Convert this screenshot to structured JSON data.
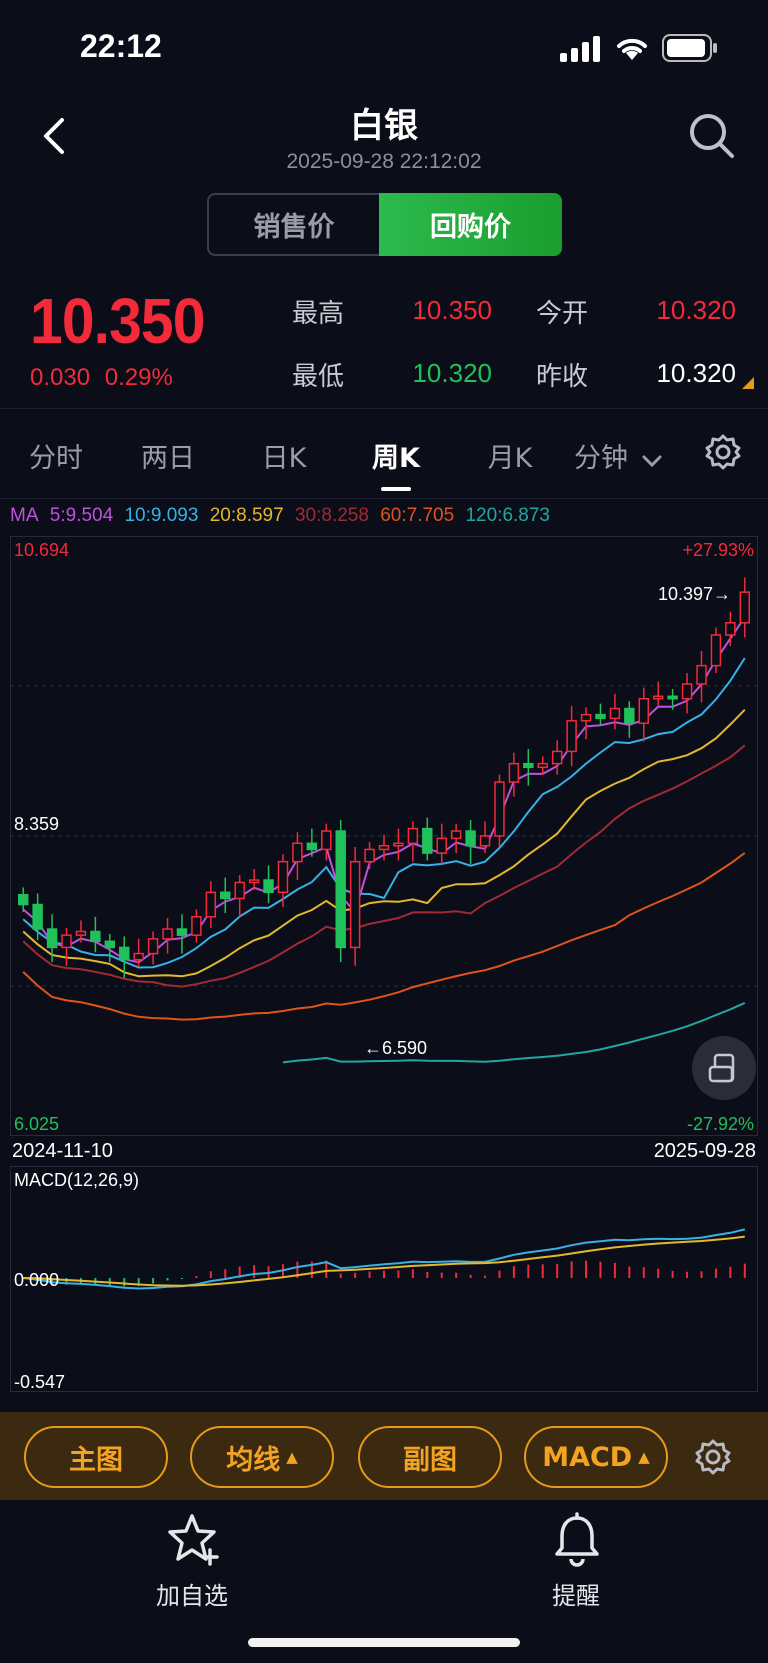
{
  "status_bar": {
    "time": "22:12"
  },
  "header": {
    "title": "白银",
    "timestamp": "2025-09-28 22:12:02"
  },
  "price_toggle": {
    "options": [
      "销售价",
      "回购价"
    ],
    "selected": "回购价"
  },
  "quote": {
    "last": "10.350",
    "change": "0.030",
    "change_pct": "0.29%",
    "high_label": "最高",
    "high": "10.350",
    "open_label": "今开",
    "open": "10.320",
    "low_label": "最低",
    "low": "10.320",
    "prev_close_label": "昨收",
    "prev_close": "10.320"
  },
  "tabs": {
    "items": [
      "分时",
      "两日",
      "日K",
      "周K",
      "月K",
      "分钟"
    ],
    "active": "周K"
  },
  "ma_legend": {
    "prefix": "MA",
    "ma5": "5:9.504",
    "ma10": "10:9.093",
    "ma20": "20:8.597",
    "ma30": "30:8.258",
    "ma60": "60:7.705",
    "ma120": "120:6.873"
  },
  "main_chart": {
    "y_top": "10.694",
    "y_mid": "8.359",
    "y_bottom": "6.025",
    "pct_top": "+27.93%",
    "pct_bottom": "-27.92%",
    "high_marker": "10.397→",
    "low_marker": "←6.590",
    "date_start": "2024-11-10",
    "date_end": "2025-09-28"
  },
  "macd_chart": {
    "label": "MACD(12,26,9)",
    "zero": "0.000",
    "min": "-0.547"
  },
  "toolbar": {
    "main_chart": "主图",
    "ma": "均线",
    "sub_chart": "副图",
    "indicator": "MACD"
  },
  "nav": {
    "watchlist": "加自选",
    "alert": "提醒"
  },
  "colors": {
    "up": "#f22a3a",
    "down": "#20c05a",
    "ma5": "#c14fe0",
    "ma10": "#37b2e6",
    "ma20": "#e3b82c",
    "ma30": "#a02a36",
    "ma60": "#e0541c",
    "ma120": "#22a7a0",
    "accent": "#f3a321"
  },
  "chart_data": {
    "type": "candlestick",
    "period": "weekly",
    "x_start": "2024-11-10",
    "x_end": "2025-09-28",
    "ylim": [
      6.025,
      10.694
    ],
    "closes": [
      7.8,
      7.6,
      7.45,
      7.55,
      7.58,
      7.5,
      7.45,
      7.35,
      7.4,
      7.52,
      7.6,
      7.55,
      7.7,
      7.9,
      7.85,
      7.98,
      8.0,
      7.9,
      8.15,
      8.3,
      8.25,
      8.4,
      7.45,
      8.15,
      8.25,
      8.28,
      8.3,
      8.42,
      8.22,
      8.34,
      8.4,
      8.28,
      8.36,
      8.8,
      8.95,
      8.92,
      8.95,
      9.05,
      9.3,
      9.35,
      9.32,
      9.4,
      9.28,
      9.48,
      9.5,
      9.48,
      9.6,
      9.75,
      10.0,
      10.1,
      10.35
    ],
    "ma_latest": {
      "MA5": 9.504,
      "MA10": 9.093,
      "MA20": 8.597,
      "MA30": 8.258,
      "MA60": 7.705,
      "MA120": 6.873
    },
    "macd": {
      "label": "MACD(12,26,9)",
      "min": -0.547
    }
  }
}
